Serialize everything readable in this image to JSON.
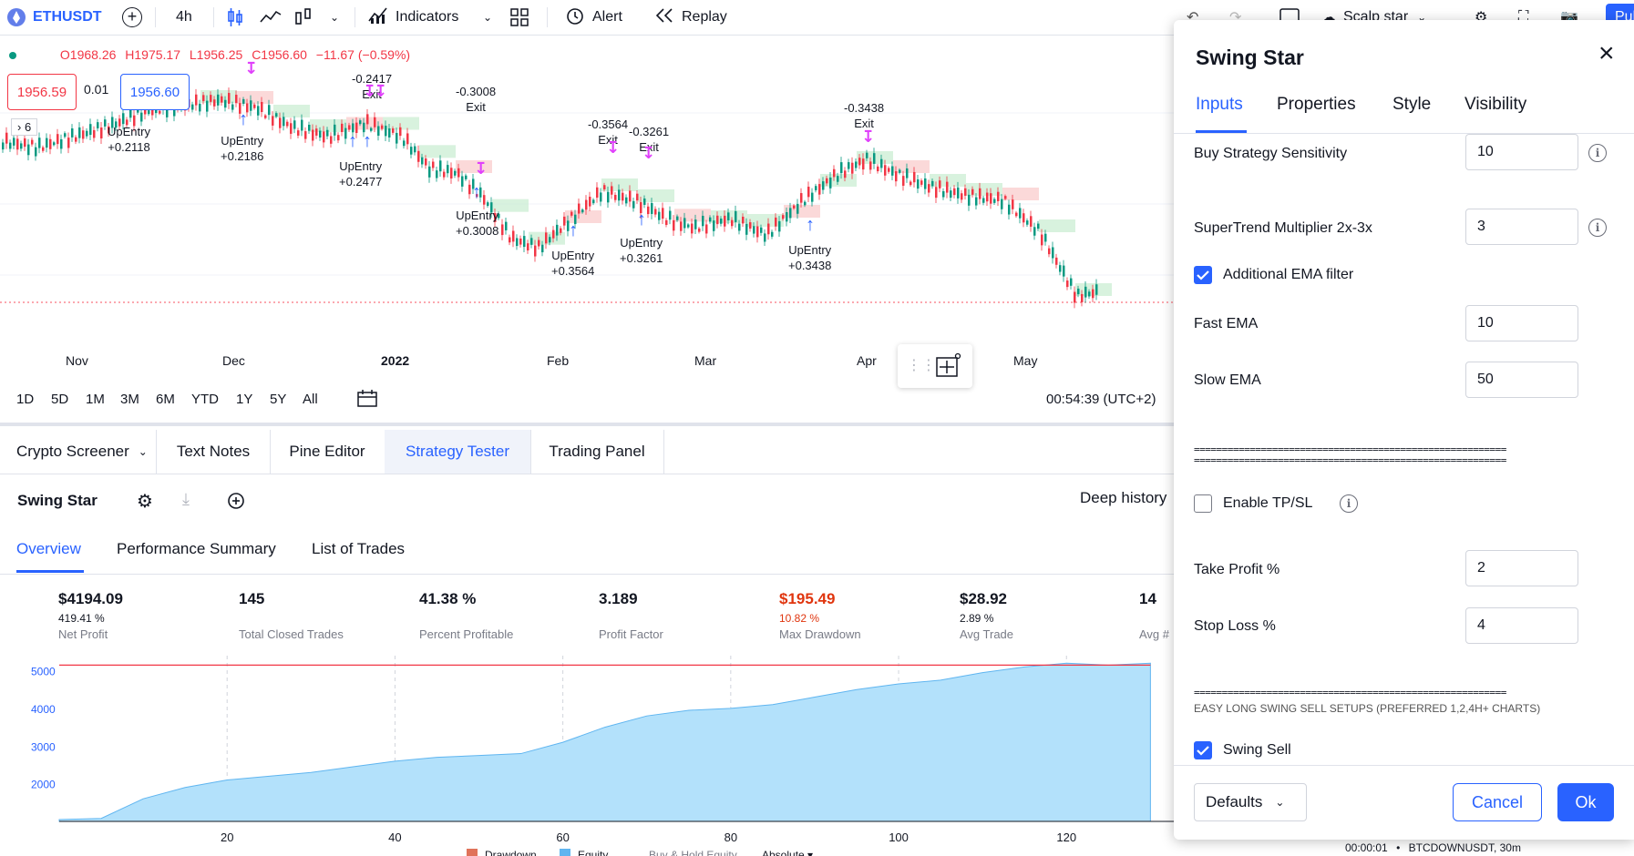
{
  "toolbar": {
    "symbol": "ETHUSDT",
    "interval": "4h",
    "indicators_label": "Indicators",
    "alert_label": "Alert",
    "replay_label": "Replay",
    "layout_name": "Scalp star",
    "publish_label": "Pub"
  },
  "legend": {
    "ohlc_o": "O1968.26",
    "ohlc_h": "H1975.17",
    "ohlc_l": "L1956.25",
    "ohlc_c": "C1956.60",
    "change": "−11.67 (−0.59%)",
    "sell_price": "1956.59",
    "spread": "0.01",
    "buy_price": "1956.60",
    "indicator_count": "6"
  },
  "chart_annotations": [
    {
      "text": "-0.3008",
      "text2": "Exit"
    },
    {
      "text": "-0.3564",
      "text2": "Exit"
    },
    {
      "text": "-0.3261",
      "text2": "Exit"
    },
    {
      "text": "-0.3438",
      "text2": "Exit"
    },
    {
      "text": "UpEntry",
      "text2": "+0.3008"
    },
    {
      "text": "UpEntry",
      "text2": "+0.3564"
    },
    {
      "text": "UpEntry",
      "text2": "+0.3261"
    },
    {
      "text": "UpEntry",
      "text2": "+0.3438"
    },
    {
      "text": "UpEntry",
      "text2": "+0.2477"
    },
    {
      "text": "UpEntry",
      "text2": "+0.2186"
    },
    {
      "text": "UpEntry",
      "text2": "+0.2118"
    },
    {
      "text": "Exit",
      "text2": "-0.2417"
    }
  ],
  "xaxis": {
    "labels": [
      "Nov",
      "Dec",
      "2022",
      "Feb",
      "Mar",
      "Apr",
      "May"
    ]
  },
  "ranges": [
    "1D",
    "5D",
    "1M",
    "3M",
    "6M",
    "YTD",
    "1Y",
    "5Y",
    "All"
  ],
  "clock": "00:54:39 (UTC+2)",
  "bottom_tabs": [
    "Crypto Screener",
    "Text Notes",
    "Pine Editor",
    "Strategy Tester",
    "Trading Panel"
  ],
  "strategy": {
    "name": "Swing Star",
    "deep_history": "Deep history",
    "subtabs": [
      "Overview",
      "Performance Summary",
      "List of Trades"
    ],
    "stats": [
      {
        "value": "$4194.09",
        "sub": "419.41 %",
        "label": "Net Profit",
        "color": "#131722"
      },
      {
        "value": "145",
        "sub": "",
        "label": "Total Closed Trades",
        "color": "#131722"
      },
      {
        "value": "41.38 %",
        "sub": "",
        "label": "Percent Profitable",
        "color": "#131722"
      },
      {
        "value": "3.189",
        "sub": "",
        "label": "Profit Factor",
        "color": "#131722"
      },
      {
        "value": "$195.49",
        "sub": "10.82 %",
        "label": "Max Drawdown",
        "color": "#e0350e"
      },
      {
        "value": "$28.92",
        "sub": "2.89 %",
        "label": "Avg Trade",
        "color": "#131722"
      },
      {
        "value": "14",
        "sub": "",
        "label": "Avg #",
        "color": "#131722"
      }
    ],
    "legend": [
      "Drawdown",
      "Equity",
      "Buy & Hold Equity",
      "Absolute"
    ]
  },
  "chart_data": {
    "type": "area",
    "x": [
      0,
      5,
      10,
      15,
      20,
      25,
      30,
      35,
      40,
      45,
      50,
      55,
      60,
      65,
      70,
      75,
      80,
      85,
      90,
      95,
      100,
      105,
      110,
      115,
      120,
      125,
      130
    ],
    "series": [
      {
        "name": "Equity",
        "values": [
          1050,
          1080,
          1600,
          1900,
          2100,
          2200,
          2300,
          2450,
          2600,
          2700,
          2750,
          2800,
          3100,
          3500,
          3800,
          3950,
          4000,
          4100,
          4300,
          4500,
          4650,
          4750,
          4950,
          5100,
          5200,
          5150,
          5200
        ]
      },
      {
        "name": "Drawdown",
        "values": [
          5150,
          5150,
          5150,
          5150,
          5150,
          5150,
          5150,
          5150,
          5150,
          5150,
          5150,
          5150,
          5150,
          5150,
          5150,
          5150,
          5150,
          5150,
          5150,
          5150,
          5150,
          5150,
          5150,
          5150,
          5150,
          5150,
          5150
        ]
      }
    ],
    "xticks": [
      20,
      40,
      60,
      80,
      100,
      120
    ],
    "yticks": [
      2000,
      3000,
      4000,
      5000
    ],
    "xlim": [
      0,
      133
    ],
    "ylim": [
      1000,
      5400
    ]
  },
  "dialog": {
    "title": "Swing Star",
    "tabs": [
      "Inputs",
      "Properties",
      "Style",
      "Visibility"
    ],
    "fields": {
      "buy_sensitivity_label": "Buy Strategy Sensitivity",
      "buy_sensitivity_value": "10",
      "supertrend_label": "SuperTrend Multiplier 2x-3x",
      "supertrend_value": "3",
      "ema_filter_label": "Additional EMA filter",
      "fast_ema_label": "Fast EMA",
      "fast_ema_value": "10",
      "slow_ema_label": "Slow EMA",
      "slow_ema_value": "50",
      "separator": "========================================================",
      "tpsl_label": "Enable TP/SL",
      "take_profit_label": "Take Profit %",
      "take_profit_value": "2",
      "stop_loss_label": "Stop Loss %",
      "stop_loss_value": "4",
      "swing_setup_text": "EASY LONG SWING SELL SETUPS (PREFERRED 1,2,4H+ CHARTS)",
      "swing_sell_label": "Swing Sell"
    },
    "defaults_label": "Defaults",
    "cancel_label": "Cancel",
    "ok_label": "Ok"
  },
  "statusbar": {
    "time": "00:00:01",
    "symbol": "BTCDOWNUSDT, 30m"
  }
}
